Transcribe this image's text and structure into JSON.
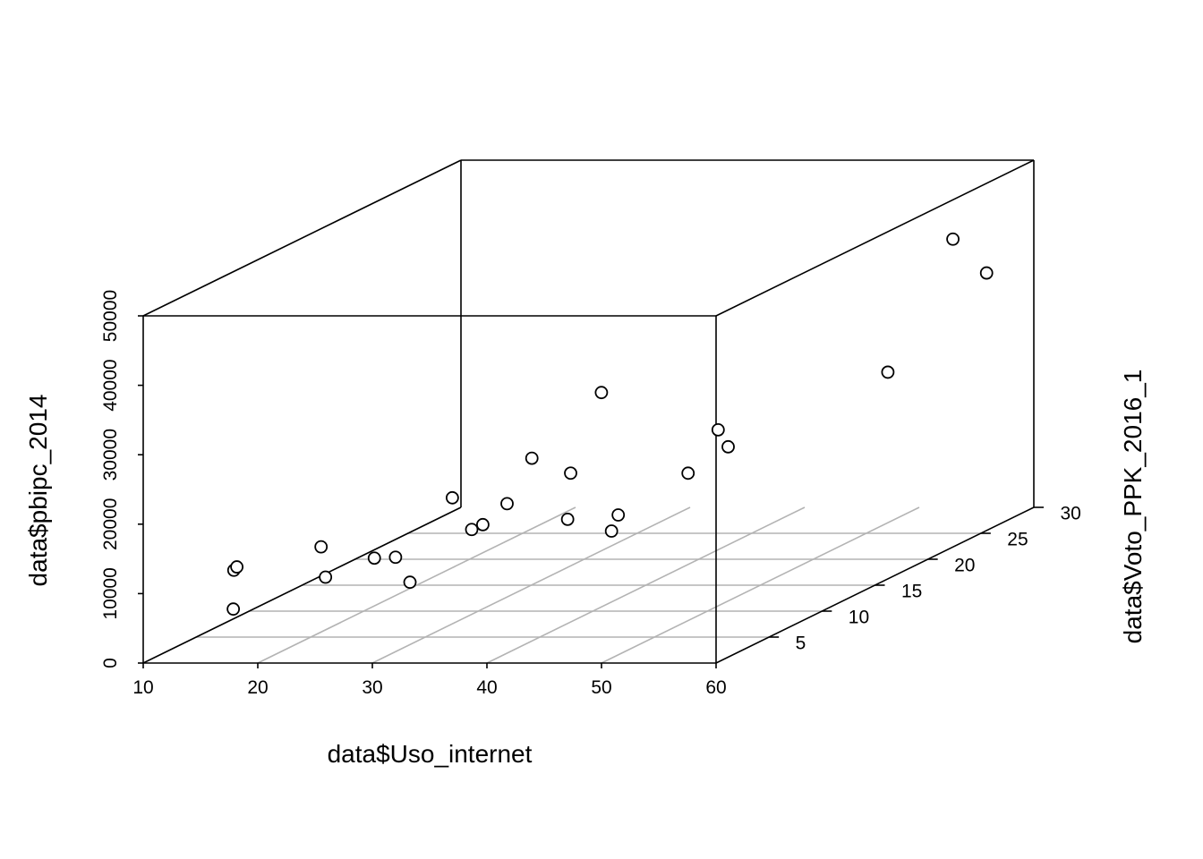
{
  "chart_data": {
    "type": "scatter3d",
    "xlabel": "data$Uso_internet",
    "ylabel": "data$Voto_PPK_2016_1",
    "zlabel": "data$pbipc_2014",
    "xlim": [
      10,
      60
    ],
    "ylim": [
      0,
      30
    ],
    "zlim": [
      0,
      50000
    ],
    "x_ticks": [
      "10",
      "20",
      "30",
      "40",
      "50",
      "60"
    ],
    "y_ticks": [
      "5",
      "10",
      "15",
      "20",
      "25",
      "30"
    ],
    "z_ticks": [
      "0",
      "10000",
      "20000",
      "30000",
      "40000",
      "50000"
    ],
    "grid": true,
    "points": [
      {
        "x": 17.4,
        "y": 0.5,
        "z": 7400
      },
      {
        "x": 15.6,
        "y": 2.5,
        "z": 11500
      },
      {
        "x": 15.4,
        "y": 3.0,
        "z": 11600
      },
      {
        "x": 23.6,
        "y": 2.5,
        "z": 10500
      },
      {
        "x": 20.9,
        "y": 5.0,
        "z": 13000
      },
      {
        "x": 26.2,
        "y": 4.3,
        "z": 11900
      },
      {
        "x": 27.4,
        "y": 5.0,
        "z": 11500
      },
      {
        "x": 29.4,
        "y": 4.2,
        "z": 8500
      },
      {
        "x": 32.2,
        "y": 7.0,
        "z": 14000
      },
      {
        "x": 32.8,
        "y": 7.4,
        "z": 14400
      },
      {
        "x": 28.2,
        "y": 9.5,
        "z": 16700
      },
      {
        "x": 33.9,
        "y": 8.5,
        "z": 16600
      },
      {
        "x": 34.4,
        "y": 10.3,
        "z": 21800
      },
      {
        "x": 39.0,
        "y": 8.7,
        "z": 14200
      },
      {
        "x": 37.6,
        "y": 10.5,
        "z": 19500
      },
      {
        "x": 35.2,
        "y": 16.0,
        "z": 27000
      },
      {
        "x": 43.2,
        "y": 8.3,
        "z": 12800
      },
      {
        "x": 42.4,
        "y": 9.8,
        "z": 14000
      },
      {
        "x": 46.0,
        "y": 12.5,
        "z": 18000
      },
      {
        "x": 47.7,
        "y": 13.5,
        "z": 23500
      },
      {
        "x": 49.5,
        "y": 12.5,
        "z": 21800
      },
      {
        "x": 54.1,
        "y": 22.6,
        "z": 25000
      },
      {
        "x": 53.4,
        "y": 29.5,
        "z": 39000
      },
      {
        "x": 56.8,
        "y": 29.0,
        "z": 34500
      }
    ]
  }
}
